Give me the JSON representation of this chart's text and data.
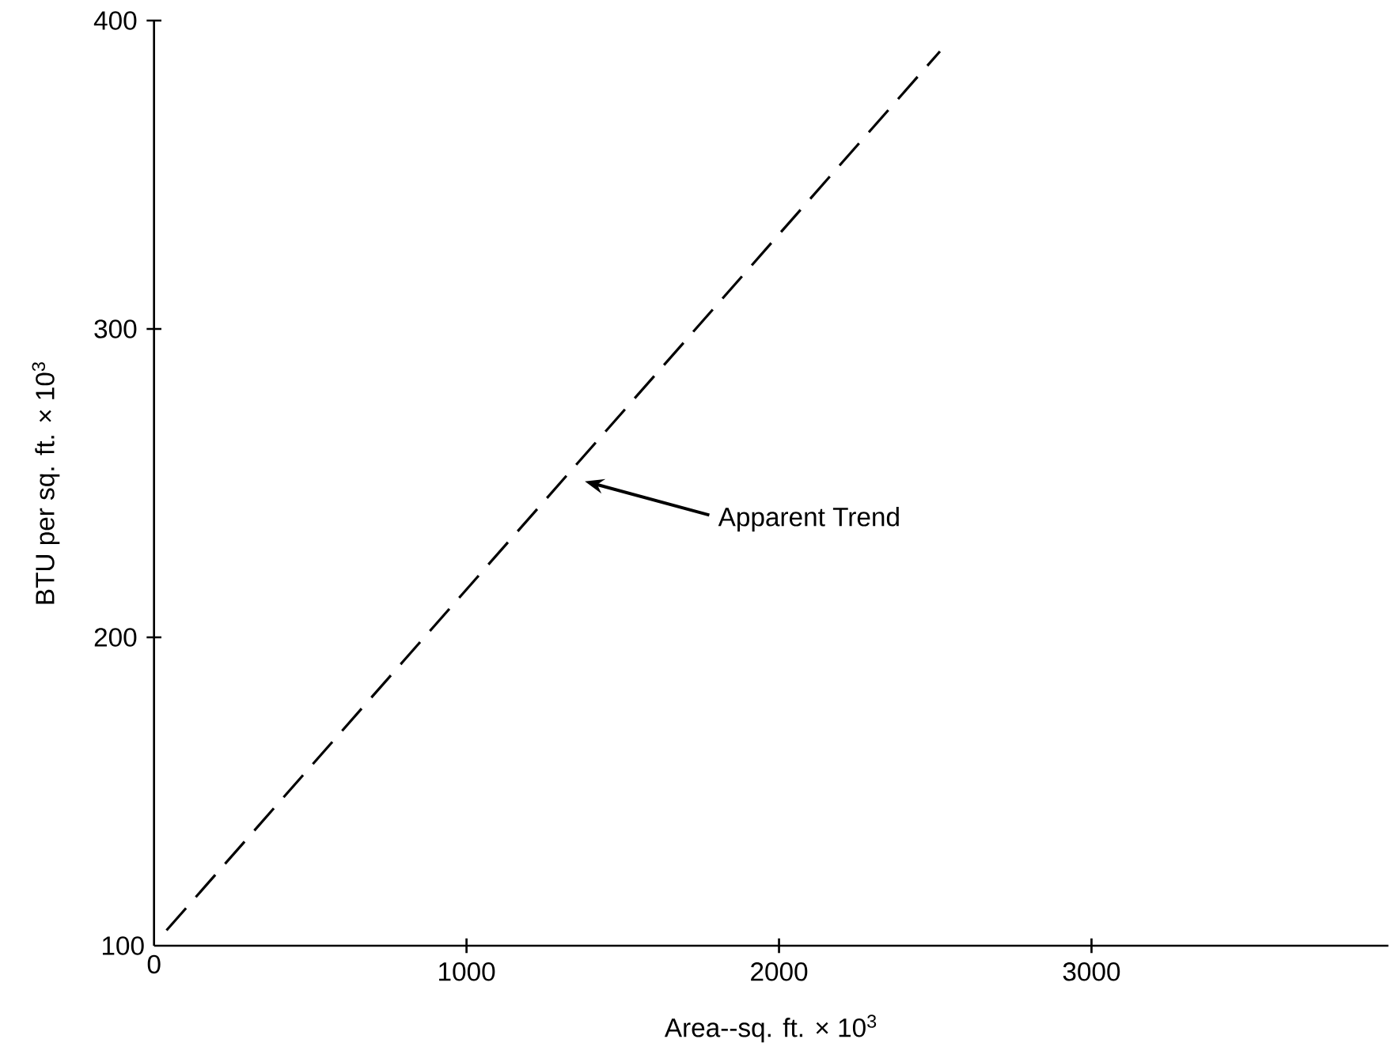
{
  "chart_data": {
    "type": "line",
    "xlabel": "Area--sq. ft. × 10$^{3}$",
    "ylabel": "BTU per sq. ft. × 10$^{3}$",
    "xlim": [
      0,
      3950
    ],
    "ylim": [
      100,
      400
    ],
    "xticks": [
      0,
      1000,
      2000,
      3000
    ],
    "yticks": [
      100,
      200,
      300,
      400
    ],
    "series": [
      {
        "color": "#000000",
        "x": [
          40,
          2515
        ],
        "values": [
          105,
          390
        ],
        "line_style": "dashed"
      }
    ],
    "annotations": [
      "Apparent Trend"
    ]
  }
}
